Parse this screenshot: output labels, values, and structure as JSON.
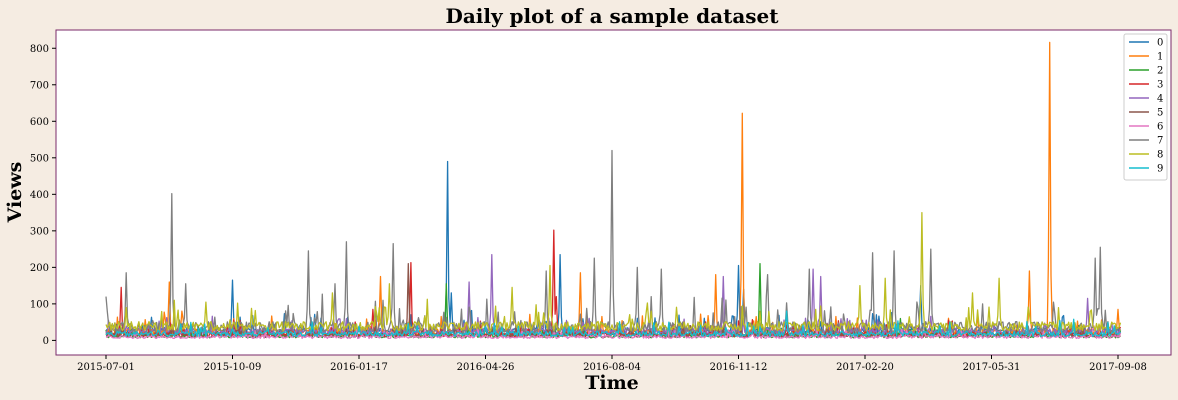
{
  "chart_data": {
    "type": "line",
    "title": "Daily plot of a sample dataset",
    "xlabel": "Time",
    "ylabel": "Views",
    "x_start": "2015-07-01",
    "x_end": "2017-09-10",
    "xticks": [
      "2015-07-01",
      "2015-10-09",
      "2016-01-17",
      "2016-04-26",
      "2016-08-04",
      "2016-11-12",
      "2017-02-20",
      "2017-05-31",
      "2017-09-08"
    ],
    "yticks": [
      0,
      100,
      200,
      300,
      400,
      500,
      600,
      700,
      800
    ],
    "ylim": [
      -40,
      850
    ],
    "grid": false,
    "legend_position": "top-right",
    "series": [
      {
        "name": "0",
        "color": "#1f77b4",
        "base": 22,
        "noise": 14,
        "spikes": [
          [
            "2015-10-09",
            165
          ],
          [
            "2016-03-27",
            490
          ],
          [
            "2016-03-30",
            130
          ],
          [
            "2016-06-24",
            235
          ],
          [
            "2016-11-12",
            205
          ],
          [
            "2016-11-16",
            140
          ],
          [
            "2017-04-05",
            150
          ]
        ]
      },
      {
        "name": "1",
        "color": "#ff7f0e",
        "base": 18,
        "noise": 14,
        "spikes": [
          [
            "2015-08-20",
            160
          ],
          [
            "2015-08-30",
            80
          ],
          [
            "2016-02-03",
            175
          ],
          [
            "2016-07-10",
            185
          ],
          [
            "2016-10-25",
            180
          ],
          [
            "2016-11-15",
            622
          ],
          [
            "2017-06-30",
            190
          ],
          [
            "2017-07-16",
            816
          ],
          [
            "2017-09-08",
            85
          ]
        ]
      },
      {
        "name": "2",
        "color": "#2ca02c",
        "base": 10,
        "noise": 7,
        "spikes": [
          [
            "2016-03-26",
            155
          ],
          [
            "2016-11-29",
            210
          ],
          [
            "2017-03-20",
            60
          ]
        ]
      },
      {
        "name": "3",
        "color": "#d62728",
        "base": 14,
        "noise": 10,
        "spikes": [
          [
            "2015-07-13",
            145
          ],
          [
            "2016-01-28",
            85
          ],
          [
            "2016-02-27",
            213
          ],
          [
            "2016-06-19",
            302
          ],
          [
            "2016-06-21",
            120
          ]
        ]
      },
      {
        "name": "4",
        "color": "#9467bd",
        "base": 22,
        "noise": 12,
        "spikes": [
          [
            "2016-05-01",
            235
          ],
          [
            "2016-04-13",
            160
          ],
          [
            "2016-10-31",
            175
          ],
          [
            "2017-01-10",
            195
          ],
          [
            "2017-01-16",
            175
          ],
          [
            "2017-08-15",
            115
          ]
        ]
      },
      {
        "name": "5",
        "color": "#8c564b",
        "base": 12,
        "noise": 8,
        "spikes": [
          [
            "2016-02-25",
            210
          ]
        ]
      },
      {
        "name": "6",
        "color": "#e377c2",
        "base": 8,
        "noise": 6,
        "spikes": [
          [
            "2017-08-20",
            40
          ]
        ]
      },
      {
        "name": "7",
        "color": "#7f7f7f",
        "base": 30,
        "noise": 22,
        "spikes": [
          [
            "2015-07-01",
            120
          ],
          [
            "2015-07-17",
            185
          ],
          [
            "2015-08-22",
            402
          ],
          [
            "2015-09-02",
            155
          ],
          [
            "2015-12-08",
            245
          ],
          [
            "2015-12-29",
            155
          ],
          [
            "2016-01-07",
            270
          ],
          [
            "2016-02-13",
            265
          ],
          [
            "2016-06-13",
            190
          ],
          [
            "2016-07-21",
            225
          ],
          [
            "2016-08-04",
            520
          ],
          [
            "2016-08-24",
            200
          ],
          [
            "2016-09-12",
            195
          ],
          [
            "2016-12-05",
            180
          ],
          [
            "2017-01-07",
            195
          ],
          [
            "2017-02-26",
            240
          ],
          [
            "2017-03-15",
            245
          ],
          [
            "2017-04-13",
            250
          ],
          [
            "2017-08-21",
            225
          ],
          [
            "2017-08-25",
            255
          ]
        ]
      },
      {
        "name": "8",
        "color": "#bcbd22",
        "base": 34,
        "noise": 18,
        "spikes": [
          [
            "2015-09-18",
            105
          ],
          [
            "2015-12-27",
            130
          ],
          [
            "2016-02-10",
            155
          ],
          [
            "2016-05-17",
            145
          ],
          [
            "2016-06-16",
            205
          ],
          [
            "2016-09-04",
            80
          ],
          [
            "2017-02-16",
            150
          ],
          [
            "2017-03-08",
            170
          ],
          [
            "2017-04-06",
            350
          ],
          [
            "2017-05-16",
            130
          ],
          [
            "2017-06-06",
            170
          ]
        ]
      },
      {
        "name": "9",
        "color": "#17becf",
        "base": 15,
        "noise": 10,
        "spikes": [
          [
            "2016-12-20",
            80
          ],
          [
            "2017-04-20",
            40
          ]
        ]
      }
    ]
  }
}
